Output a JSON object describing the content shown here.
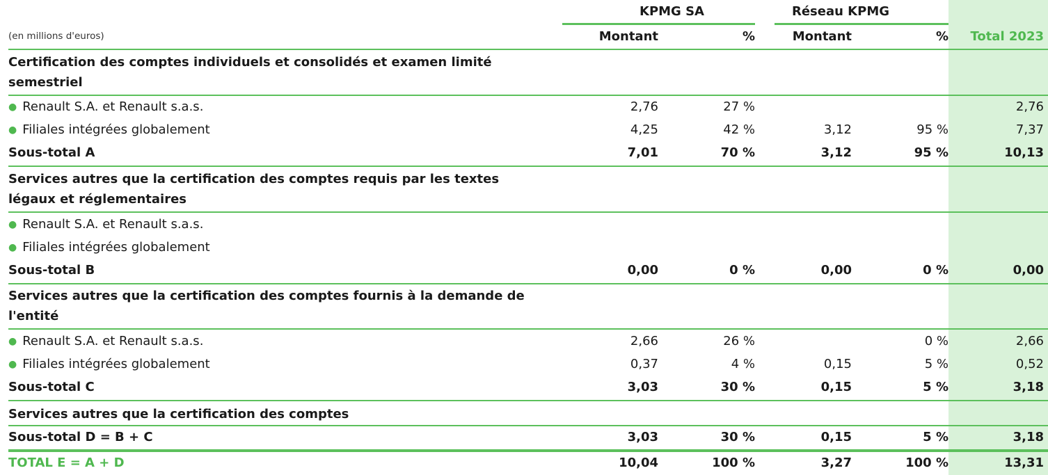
{
  "header": {
    "group_kpmg": "KPMG SA",
    "group_reseau": "Réseau KPMG",
    "unit_note": "(en millions d'euros)",
    "col_montant_1": "Montant",
    "col_pct_1": "%",
    "col_montant_2": "Montant",
    "col_pct_2": "%",
    "col_total": "Total 2023"
  },
  "sections": {
    "a": {
      "title": "Certification des comptes individuels et consolidés et examen limité semestriel"
    },
    "b": {
      "title": "Services autres que la certification des comptes requis par les textes légaux et réglementaires"
    },
    "c": {
      "title": "Services autres que la certification des comptes fournis à la demande de l'entité"
    },
    "d": {
      "title": "Services autres que la certification des comptes"
    }
  },
  "rows": {
    "a1": {
      "label": "Renault S.A. et Renault s.a.s.",
      "m1": "2,76",
      "p1": "27 %",
      "m2": "",
      "p2": "",
      "t": "2,76"
    },
    "a2": {
      "label": "Filiales intégrées globalement",
      "m1": "4,25",
      "p1": "42 %",
      "m2": "3,12",
      "p2": "95 %",
      "t": "7,37"
    },
    "sa": {
      "label": "Sous-total A",
      "m1": "7,01",
      "p1": "70 %",
      "m2": "3,12",
      "p2": "95 %",
      "t": "10,13"
    },
    "b1": {
      "label": "Renault S.A. et Renault s.a.s.",
      "m1": "",
      "p1": "",
      "m2": "",
      "p2": "",
      "t": ""
    },
    "b2": {
      "label": "Filiales intégrées globalement",
      "m1": "",
      "p1": "",
      "m2": "",
      "p2": "",
      "t": ""
    },
    "sb": {
      "label": "Sous-total B",
      "m1": "0,00",
      "p1": "0 %",
      "m2": "0,00",
      "p2": "0 %",
      "t": "0,00"
    },
    "c1": {
      "label": "Renault S.A. et Renault s.a.s.",
      "m1": "2,66",
      "p1": "26 %",
      "m2": "",
      "p2": "0 %",
      "t": "2,66"
    },
    "c2": {
      "label": "Filiales intégrées globalement",
      "m1": "0,37",
      "p1": "4 %",
      "m2": "0,15",
      "p2": "5 %",
      "t": "0,52"
    },
    "sc": {
      "label": "Sous-total C",
      "m1": "3,03",
      "p1": "30 %",
      "m2": "0,15",
      "p2": "5 %",
      "t": "3,18"
    },
    "sd": {
      "label": "Sous-total D = B + C",
      "m1": "3,03",
      "p1": "30 %",
      "m2": "0,15",
      "p2": "5 %",
      "t": "3,18"
    },
    "te": {
      "label": "TOTAL E = A + D",
      "m1": "10,04",
      "p1": "100 %",
      "m2": "3,27",
      "p2": "100 %",
      "t": "13,31"
    }
  },
  "colors": {
    "accent": "#4fb84f",
    "total_column_bg": "#d9f2d9"
  }
}
